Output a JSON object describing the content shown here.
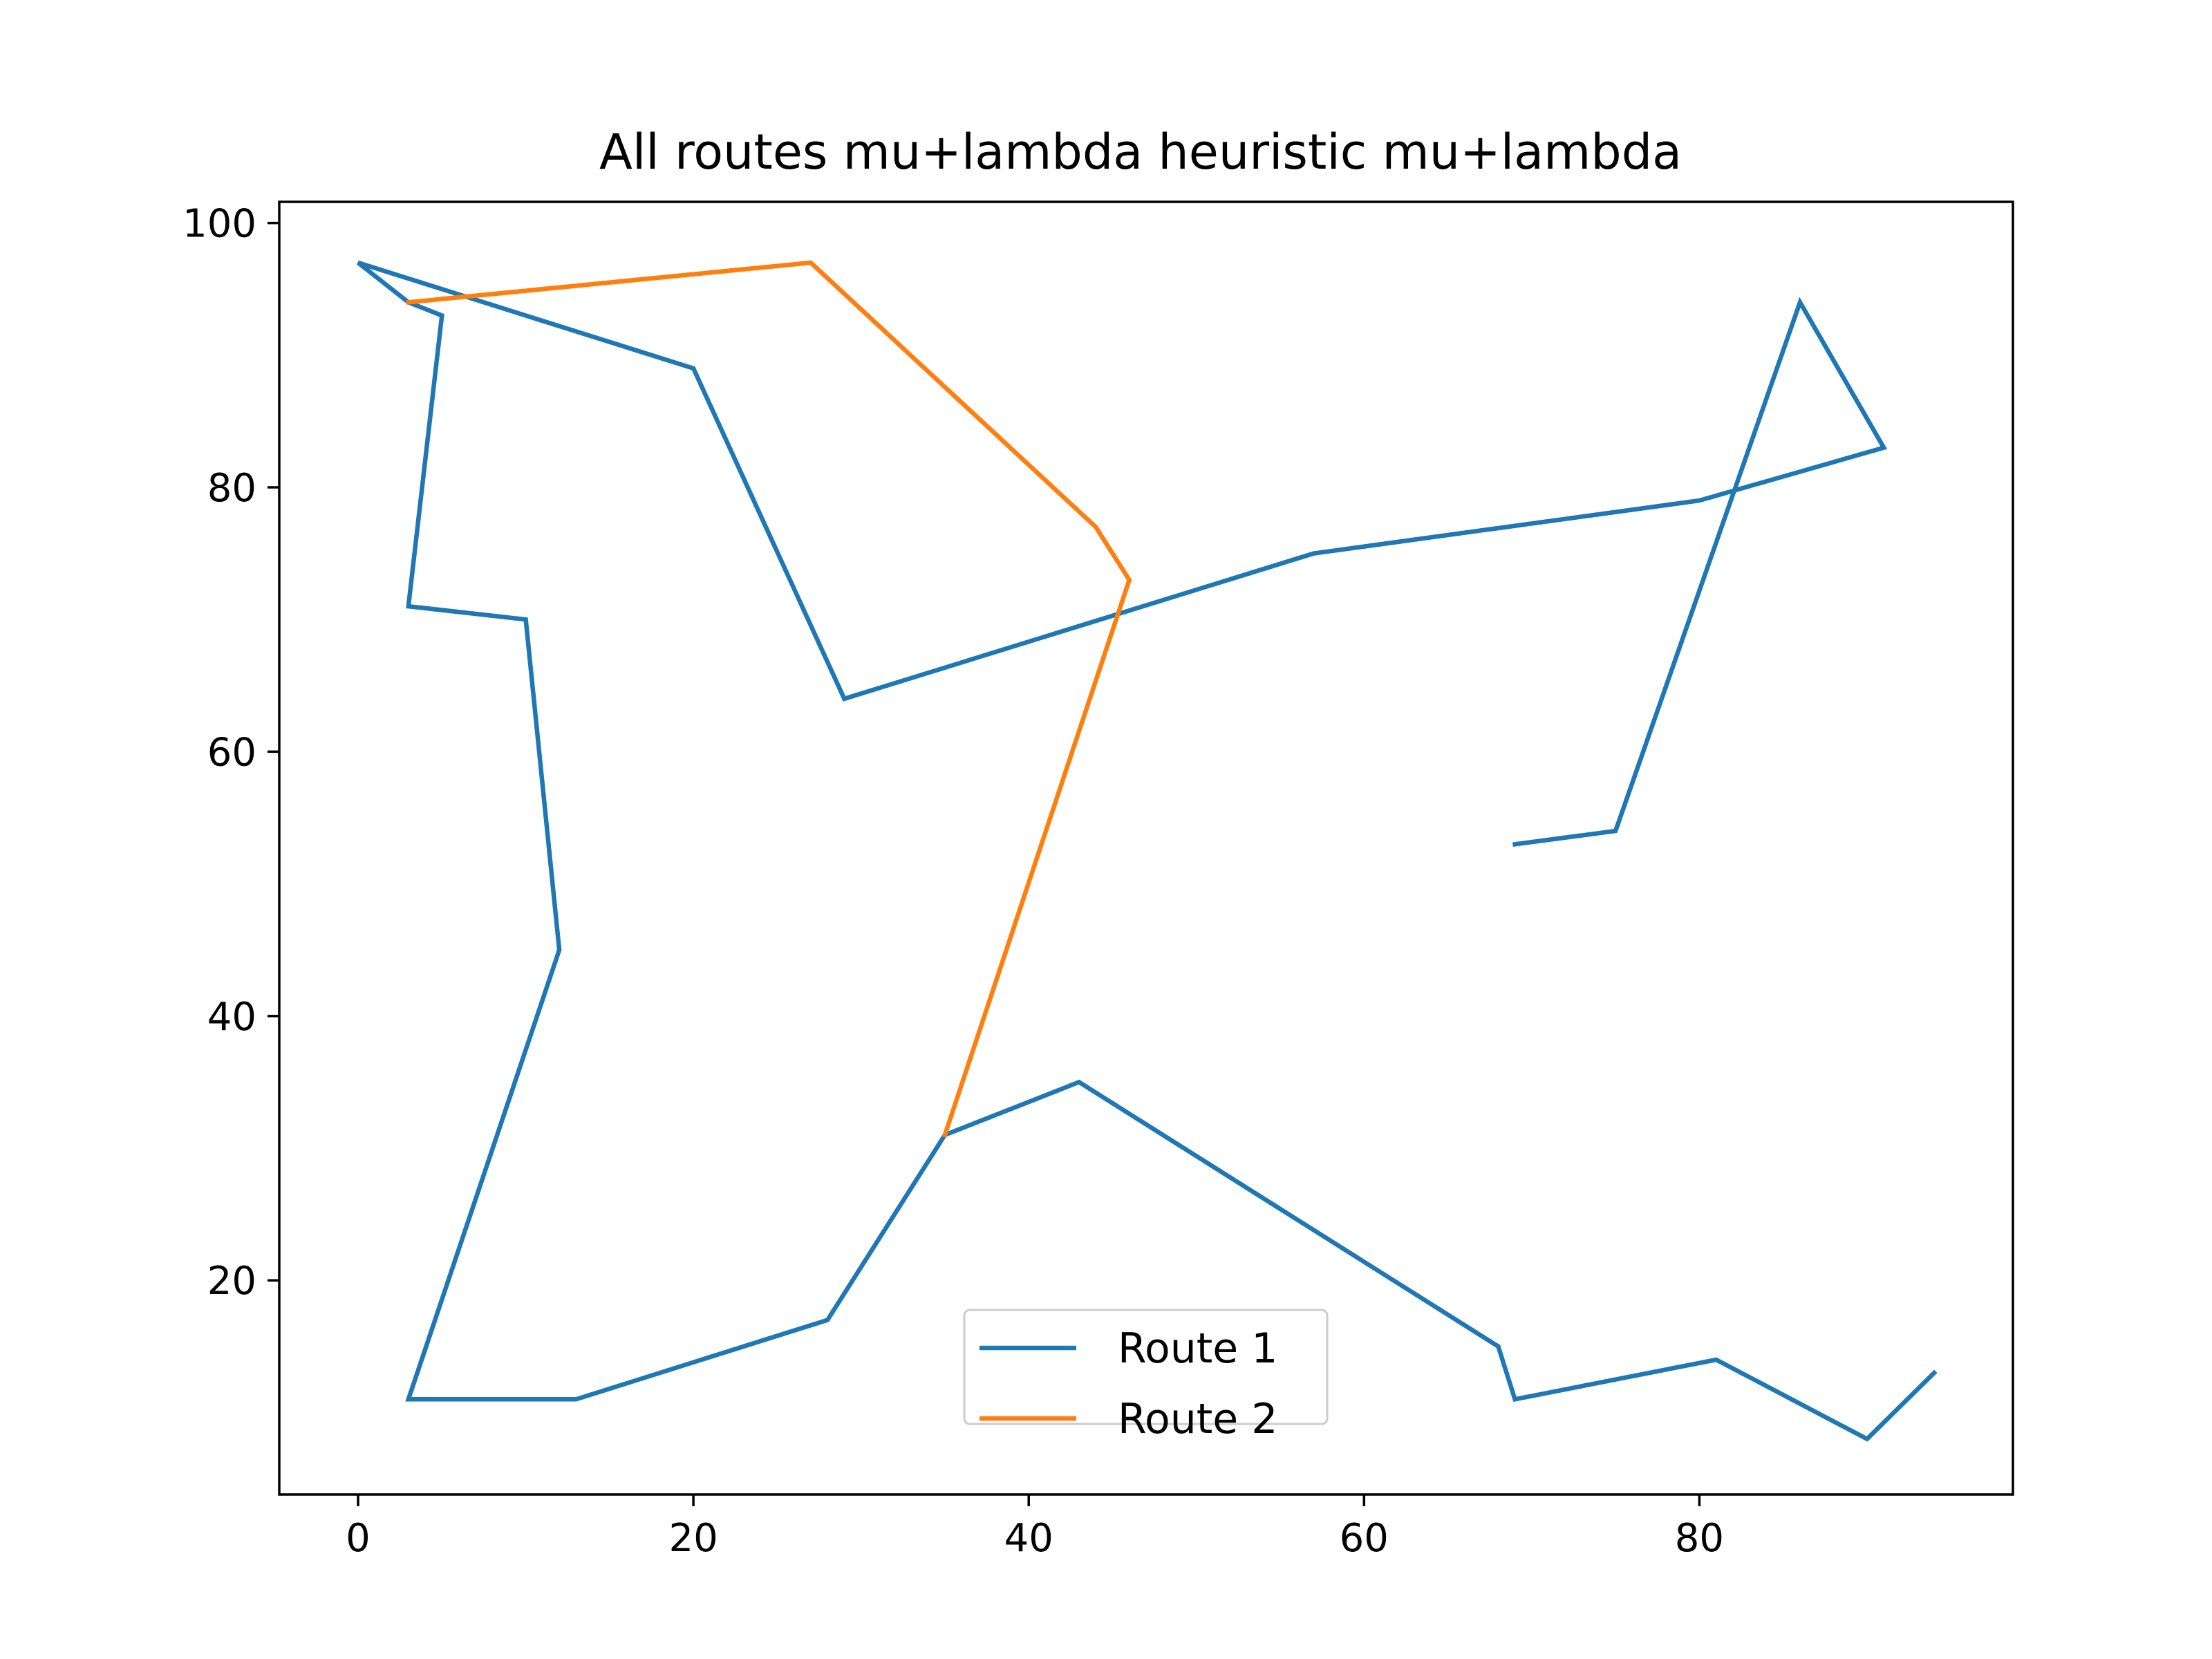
{
  "chart_data": {
    "type": "line",
    "title": "All routes mu+lambda heuristic mu+lambda",
    "xlabel": "",
    "ylabel": "",
    "xlim": [
      -4.7,
      98.7
    ],
    "ylim": [
      3.8,
      101.6
    ],
    "xticks": [
      0,
      20,
      40,
      60,
      80
    ],
    "yticks": [
      20,
      40,
      60,
      80,
      100
    ],
    "grid": false,
    "legend_position": "lower center",
    "series": [
      {
        "name": "Route 1",
        "color": "#1f77b4",
        "points": [
          [
            69,
            53
          ],
          [
            75,
            54
          ],
          [
            86,
            94
          ],
          [
            91,
            83
          ],
          [
            80,
            79
          ],
          [
            57,
            75
          ],
          [
            29,
            64
          ],
          [
            20,
            89
          ],
          [
            0,
            97
          ],
          [
            3,
            94
          ],
          [
            5,
            93
          ],
          [
            3,
            71
          ],
          [
            10,
            70
          ],
          [
            12,
            45
          ],
          [
            3,
            11
          ],
          [
            13,
            11
          ],
          [
            28,
            17
          ],
          [
            35,
            31
          ],
          [
            43,
            35
          ],
          [
            68,
            15
          ],
          [
            69,
            11
          ],
          [
            81,
            14
          ],
          [
            90,
            8
          ],
          [
            94,
            13
          ]
        ]
      },
      {
        "name": "Route 2",
        "color": "#ff7f0e",
        "points": [
          [
            3,
            94
          ],
          [
            27,
            97
          ],
          [
            44,
            77
          ],
          [
            46,
            73
          ],
          [
            35,
            31
          ]
        ]
      }
    ]
  }
}
